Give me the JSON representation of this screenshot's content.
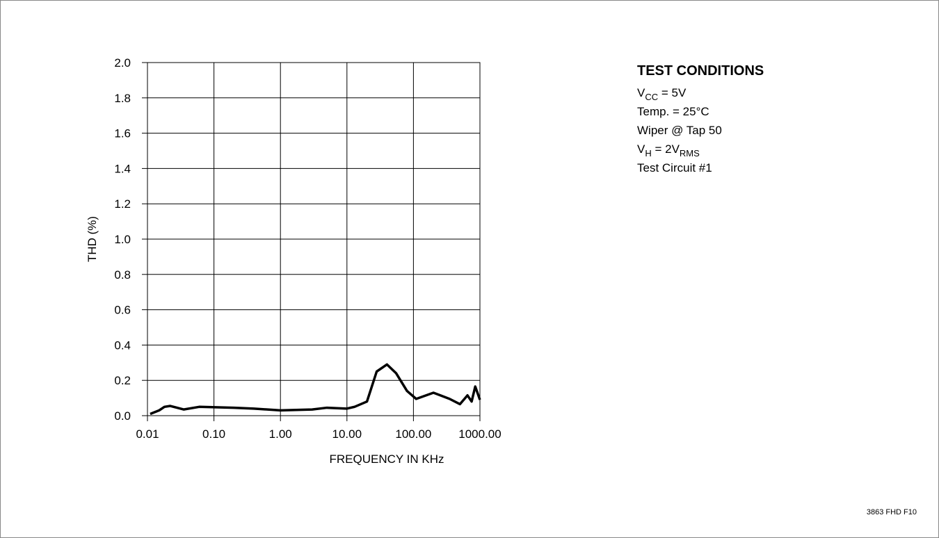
{
  "chart_data": {
    "type": "line",
    "xlabel": "FREQUENCY IN KHz",
    "ylabel": "THD (%)",
    "xscale": "log",
    "grid": true,
    "color": "#000000",
    "x": [
      0.011,
      0.015,
      0.018,
      0.022,
      0.035,
      0.06,
      0.2,
      0.4,
      1.0,
      3,
      5,
      10,
      13,
      20,
      28,
      40,
      55,
      80,
      110,
      200,
      350,
      500,
      650,
      750,
      850,
      1000
    ],
    "values": [
      0.01,
      0.03,
      0.05,
      0.055,
      0.035,
      0.05,
      0.045,
      0.04,
      0.03,
      0.035,
      0.045,
      0.04,
      0.05,
      0.08,
      0.25,
      0.29,
      0.24,
      0.14,
      0.095,
      0.13,
      0.095,
      0.065,
      0.115,
      0.08,
      0.165,
      0.09
    ],
    "xlim": [
      0.01,
      1000
    ],
    "xticks": [
      0.01,
      {
        "value": 0.1,
        "label": "0.10"
      },
      {
        "value": 1,
        "label": "1.00"
      },
      {
        "value": 10,
        "label": "10.00"
      },
      {
        "value": 100,
        "label": "100.00"
      },
      {
        "value": 1000,
        "label": "1000.00"
      }
    ],
    "ylim": [
      0,
      2
    ],
    "yticks": [
      {
        "value": 0,
        "label": "0.0"
      },
      0.2,
      0.4,
      0.6,
      0.8,
      {
        "value": 1,
        "label": "1.0"
      },
      1.2,
      1.4,
      1.6,
      1.8,
      {
        "value": 2,
        "label": "2.0"
      }
    ],
    "annotation": {
      "heading": "TEST CONDITIONS",
      "lines": [
        [
          "V",
          "CC",
          " = 5V"
        ],
        [
          "Temp. = 25°C"
        ],
        [
          "Wiper @ Tap 50"
        ],
        [
          "V",
          "H",
          " = 2V",
          "RMS"
        ],
        [
          "Test Circuit #1"
        ]
      ]
    },
    "figure_id": "3863 FHD F10"
  }
}
